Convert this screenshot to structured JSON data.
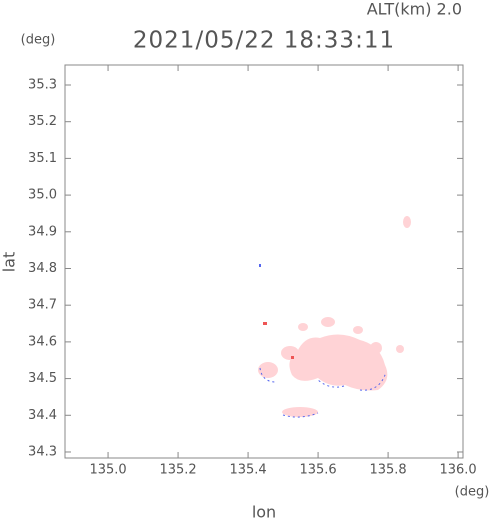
{
  "chart_data": {
    "type": "map",
    "title": "2021/05/22 18:33:11",
    "annotation": "ALT(km) 2.0",
    "y_unit": "(deg)",
    "x_unit": "(deg)",
    "xlabel": "lon",
    "ylabel": "lat",
    "xlim": [
      134.877,
      136.014
    ],
    "ylim": [
      34.2836,
      35.3545
    ],
    "xticks": [
      {
        "value": 135,
        "label": "135.0"
      },
      135.2,
      135.4,
      135.6,
      135.8,
      {
        "value": 136,
        "label": "136.0"
      }
    ],
    "yticks": [
      34.3,
      34.4,
      34.5,
      34.6,
      34.7,
      34.8,
      34.9,
      {
        "value": 35,
        "label": "35.0"
      },
      35.1,
      35.2,
      35.3
    ]
  }
}
